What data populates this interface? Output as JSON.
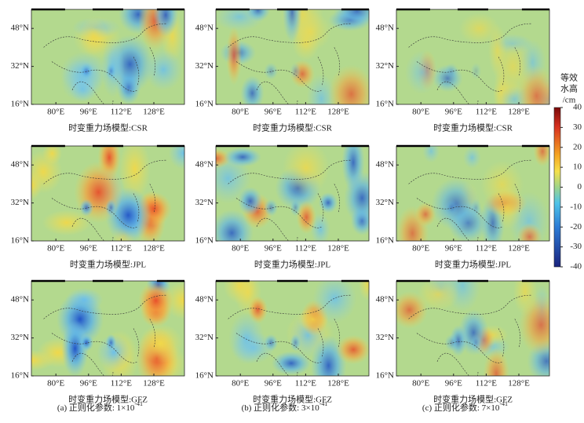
{
  "map": {
    "xlim": [
      68,
      143
    ],
    "ylim": [
      16,
      56
    ],
    "xticks": [
      {
        "value": 80,
        "label": "80°E"
      },
      {
        "value": 96,
        "label": "96°E"
      },
      {
        "value": 112,
        "label": "112°E"
      },
      {
        "value": 128,
        "label": "128°E"
      }
    ],
    "yticks": [
      {
        "value": 48,
        "label": "48°N"
      },
      {
        "value": 32,
        "label": "32°N"
      },
      {
        "value": 16,
        "label": "16°N"
      }
    ]
  },
  "panels": [
    {
      "model_label": "时变重力场模型:CSR"
    },
    {
      "model_label": "时变重力场模型:CSR"
    },
    {
      "model_label": "时变重力场模型:CSR"
    },
    {
      "model_label": "时变重力场模型:JPL"
    },
    {
      "model_label": "时变重力场模型:JPL"
    },
    {
      "model_label": "时变重力场模型:JPL"
    },
    {
      "model_label": "时变重力场模型:GFZ"
    },
    {
      "model_label": "时变重力场模型:GFZ"
    },
    {
      "model_label": "时变重力场模型:GFZ"
    }
  ],
  "captions": [
    {
      "text": "(a) 正则化参数: 1×10",
      "exponent": "-41"
    },
    {
      "text": "(b) 正则化参数: 3×10",
      "exponent": "-41"
    },
    {
      "text": "(c) 正则化参数: 7×10",
      "exponent": "-41"
    }
  ],
  "colorbar": {
    "label": [
      "等效",
      "水高",
      "/cm"
    ],
    "lim": [
      -40,
      40
    ],
    "ticks": [
      40,
      30,
      20,
      10,
      0,
      -10,
      -20,
      -30,
      -40
    ]
  }
}
